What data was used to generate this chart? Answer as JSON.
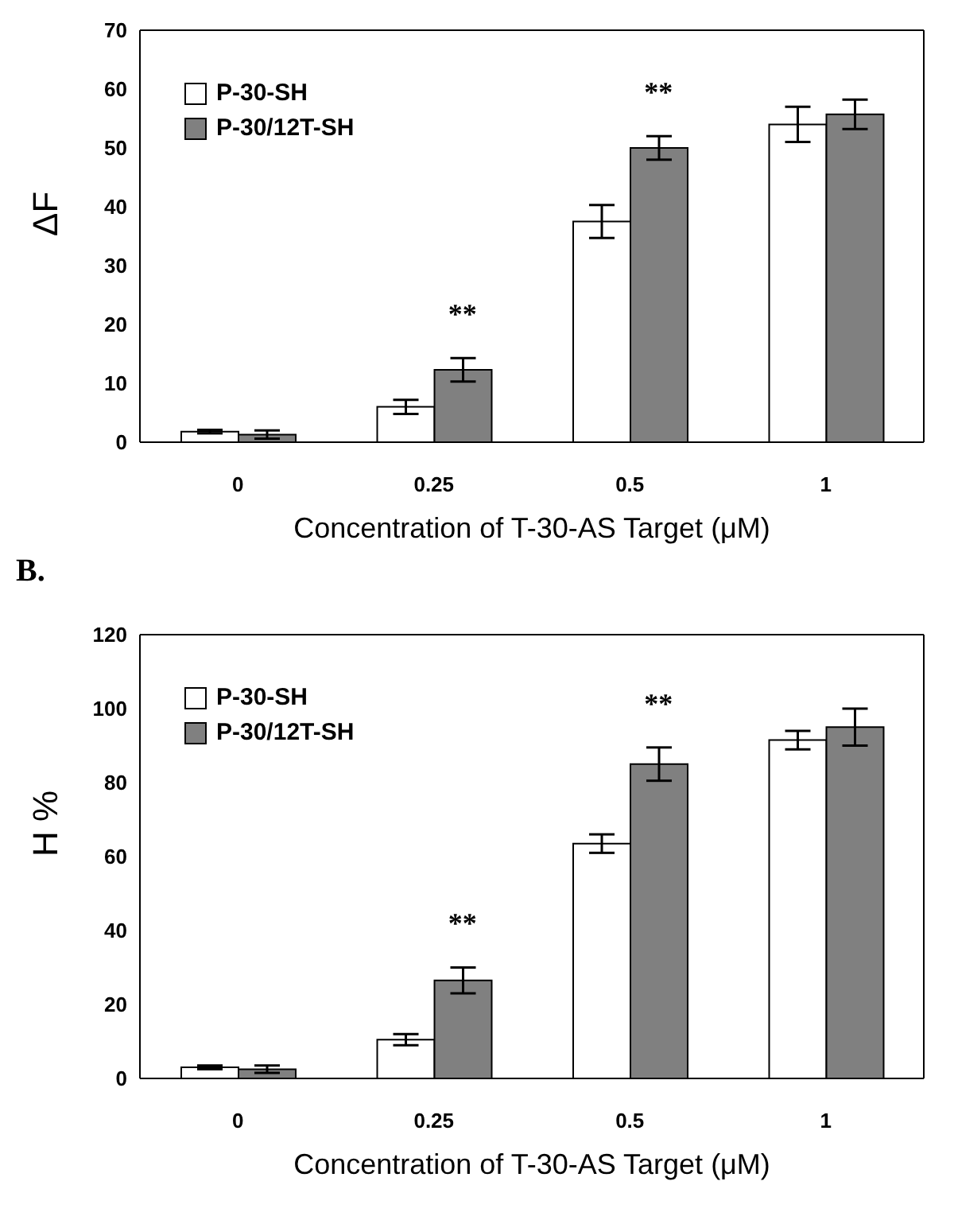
{
  "chart_data": [
    {
      "type": "bar",
      "categories": [
        "0",
        "0.25",
        "0.5",
        "1"
      ],
      "xlabel": "Concentration of T-30-AS Target (μM)",
      "ylabel": "ΔF",
      "series": [
        {
          "name": "P-30-SH",
          "color": "#ffffff",
          "values": [
            1.8,
            6,
            37.5,
            54
          ],
          "errors": [
            0.3,
            1.2,
            2.8,
            3
          ]
        },
        {
          "name": "P-30/12T-SH",
          "color": "#808080",
          "values": [
            1.3,
            12.3,
            50,
            55.7
          ],
          "errors": [
            0.7,
            2,
            2,
            2.5
          ]
        }
      ],
      "ylim": [
        0,
        70
      ],
      "yticks": [
        0,
        10,
        20,
        30,
        40,
        50,
        60,
        70
      ],
      "legend": "top left",
      "annotations": [
        "**",
        "**"
      ]
    },
    {
      "type": "bar",
      "title": "B.",
      "categories": [
        "0",
        "0.25",
        "0.5",
        "1"
      ],
      "xlabel": "Concentration of T-30-AS Target (μM)",
      "ylabel": "H %",
      "series": [
        {
          "name": "P-30-SH",
          "color": "#ffffff",
          "values": [
            3,
            10.5,
            63.5,
            91.5
          ],
          "errors": [
            0.5,
            1.5,
            2.5,
            2.5
          ]
        },
        {
          "name": "P-30/12T-SH",
          "color": "#808080",
          "values": [
            2.5,
            26.5,
            85,
            95
          ],
          "errors": [
            1,
            3.5,
            4.5,
            5
          ]
        }
      ],
      "ylim": [
        0,
        120
      ],
      "yticks": [
        0,
        20,
        40,
        60,
        80,
        100,
        120
      ],
      "legend": "top left",
      "annotations": [
        "**",
        "**"
      ]
    }
  ]
}
